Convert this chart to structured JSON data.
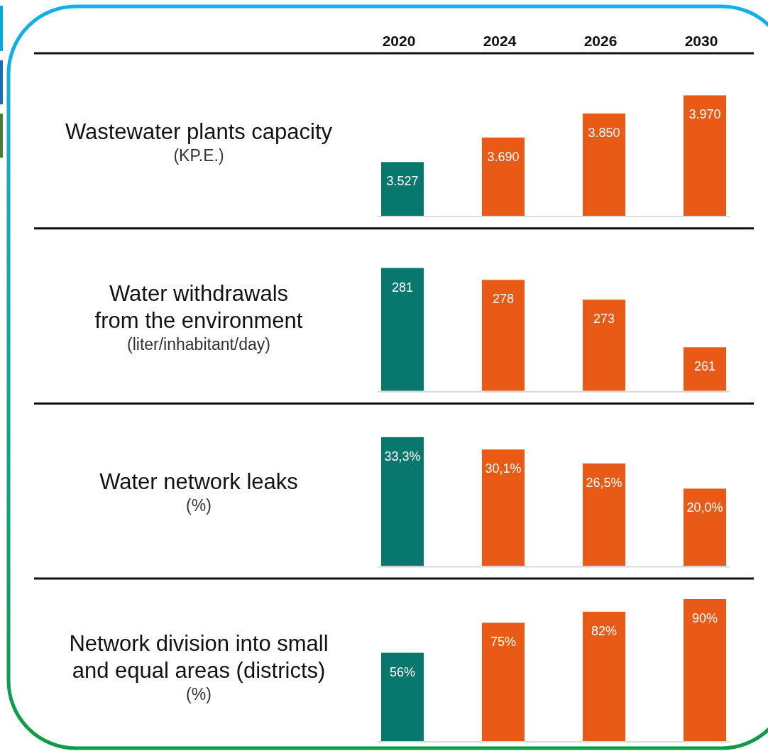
{
  "chart_data": [
    {
      "type": "bar",
      "title": "Wastewater plants capacity",
      "ylabel": "(KP.E.)",
      "categories": [
        "2020",
        "2024",
        "2026",
        "2030"
      ],
      "values": [
        3527,
        3690,
        3850,
        3970
      ],
      "value_labels": [
        "3.527",
        "3.690",
        "3.850",
        "3.970"
      ],
      "colors": [
        "#08786f",
        "#e95a17",
        "#e95a17",
        "#e95a17"
      ],
      "ylim": [
        3170,
        4250
      ],
      "tick_labels": "x"
    },
    {
      "type": "bar",
      "title": "Water withdrawals from the environment",
      "ylabel": "(liter/inhabitant/day)",
      "categories": [
        "2020",
        "2024",
        "2026",
        "2030"
      ],
      "values": [
        281,
        278,
        273,
        261
      ],
      "data_labels": true,
      "colors": [
        "#08786f",
        "#e95a17",
        "#e95a17",
        "#e95a17"
      ],
      "ylim": [
        250,
        291
      ],
      "tick_labels": false
    },
    {
      "type": "bar",
      "title": "Water network leaks",
      "ylabel": "(%)",
      "categories": [
        "2020",
        "2024",
        "2026",
        "2030"
      ],
      "values": [
        33.3,
        30.1,
        26.5,
        20.0
      ],
      "value_labels": [
        "33,3%",
        "30,1%",
        "26,5%",
        "20,0%"
      ],
      "colors": [
        "#08786f",
        "#e95a17",
        "#e95a17",
        "#e95a17"
      ],
      "ylim": [
        0,
        42
      ],
      "tick_labels": false
    },
    {
      "type": "bar",
      "title": "Network division into small and equal areas (districts)",
      "ylabel": "(%)",
      "categories": [
        "2020",
        "2024",
        "2026",
        "2030"
      ],
      "values": [
        56,
        75,
        82,
        90
      ],
      "value_labels": [
        "56%",
        "75%",
        "82%",
        "90%"
      ],
      "colors": [
        "#08786f",
        "#e95a17",
        "#e95a17",
        "#e95a17"
      ],
      "ylim": [
        0,
        103
      ],
      "tick_labels": false
    }
  ]
}
